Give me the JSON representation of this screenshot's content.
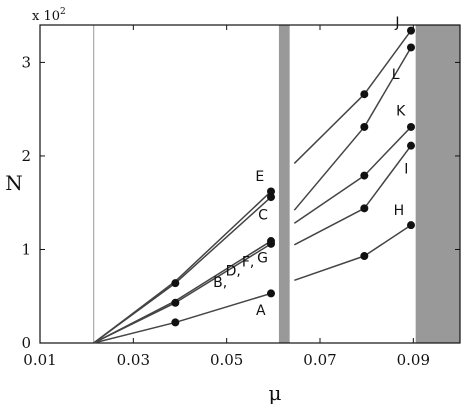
{
  "chart_data": {
    "type": "line",
    "xlabel": "μ",
    "ylabel": "N",
    "y_multiplier_text": "x 10",
    "y_multiplier_exp": "2",
    "xlim": [
      0.01,
      0.1
    ],
    "ylim": [
      0,
      3.4
    ],
    "x_ticks": [
      0.01,
      0.03,
      0.05,
      0.07,
      0.09
    ],
    "x_tick_labels": [
      "0.01",
      "0.03",
      "0.05",
      "0.07",
      "0.09"
    ],
    "y_ticks": [
      0,
      1,
      2,
      3
    ],
    "y_tick_labels": [
      "0",
      "1",
      "2",
      "3"
    ],
    "threshold_line_x": 0.0215,
    "shaded_bands": [
      [
        0.0612,
        0.0635
      ],
      [
        0.0905,
        0.1
      ]
    ],
    "colors": {
      "curve": "#444444",
      "marker": "#111111",
      "band": "#999999",
      "threshold": "#aaaaaa"
    },
    "series": [
      {
        "x": [
          0.0215,
          0.039,
          0.0595
        ],
        "y": [
          0.0,
          0.22,
          0.53
        ],
        "markers": [
          0.039,
          0.0595
        ]
      },
      {
        "x": [
          0.0215,
          0.039,
          0.0595
        ],
        "y": [
          0.0,
          0.43,
          1.06
        ],
        "markers": [
          0.039,
          0.0595
        ]
      },
      {
        "x": [
          0.0215,
          0.039,
          0.0595
        ],
        "y": [
          0.0,
          0.45,
          1.09
        ],
        "markers": [
          0.0595
        ]
      },
      {
        "x": [
          0.0215,
          0.039,
          0.0595
        ],
        "y": [
          0.0,
          0.64,
          1.56
        ],
        "markers": [
          0.039,
          0.0595
        ]
      },
      {
        "x": [
          0.0215,
          0.039,
          0.0595
        ],
        "y": [
          0.0,
          0.66,
          1.62
        ],
        "markers": [
          0.0595
        ]
      },
      {
        "x": [
          0.0645,
          0.0795,
          0.0895
        ],
        "y": [
          0.67,
          0.93,
          1.26
        ],
        "markers": [
          0.0795,
          0.0895
        ]
      },
      {
        "x": [
          0.0645,
          0.0795,
          0.0895
        ],
        "y": [
          1.05,
          1.44,
          2.11
        ],
        "markers": [
          0.0795,
          0.0895
        ]
      },
      {
        "x": [
          0.0645,
          0.0795,
          0.0895
        ],
        "y": [
          1.28,
          1.79,
          2.31
        ],
        "markers": [
          0.0795,
          0.0895
        ]
      },
      {
        "x": [
          0.0645,
          0.0795,
          0.0895
        ],
        "y": [
          1.42,
          2.31,
          3.16
        ],
        "markers": [
          0.0795,
          0.0895
        ]
      },
      {
        "x": [
          0.0645,
          0.0795,
          0.0895
        ],
        "y": [
          1.92,
          2.66,
          3.34
        ],
        "markers": [
          0.0795,
          0.0895
        ]
      }
    ],
    "annotations": [
      {
        "text": "A",
        "x": 0.0573,
        "y": 0.3
      },
      {
        "text": "B,",
        "x": 0.0486,
        "y": 0.6
      },
      {
        "text": "D,",
        "x": 0.0514,
        "y": 0.72
      },
      {
        "text": "F,",
        "x": 0.0546,
        "y": 0.82
      },
      {
        "text": "G",
        "x": 0.0577,
        "y": 0.86
      },
      {
        "text": "C",
        "x": 0.0578,
        "y": 1.32
      },
      {
        "text": "E",
        "x": 0.0571,
        "y": 1.73
      },
      {
        "text": "H",
        "x": 0.0869,
        "y": 1.37
      },
      {
        "text": "I",
        "x": 0.0885,
        "y": 1.81
      },
      {
        "text": "K",
        "x": 0.0873,
        "y": 2.43
      },
      {
        "text": "L",
        "x": 0.0862,
        "y": 2.82
      },
      {
        "text": "J",
        "x": 0.0866,
        "y": 3.38
      }
    ]
  }
}
